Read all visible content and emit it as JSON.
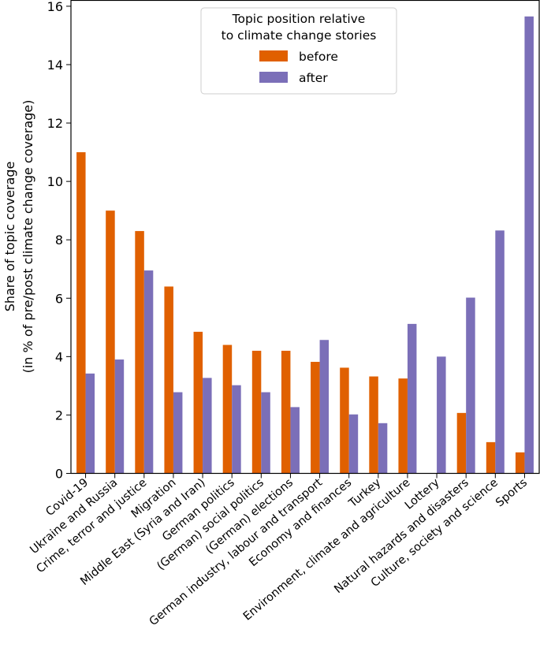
{
  "chart_data": {
    "type": "bar",
    "title": "",
    "xlabel": "",
    "ylabel_line1": "Share of topic coverage",
    "ylabel_line2": "(in % of pre/post climate change coverage)",
    "ylim": [
      0,
      16.2
    ],
    "yticks": [
      0,
      2,
      4,
      6,
      8,
      10,
      12,
      14,
      16
    ],
    "legend_title_line1": "Topic position relative",
    "legend_title_line2": "to climate change stories",
    "legend_position": "top-center",
    "categories": [
      "Covid-19",
      "Ukraine and Russia",
      "Crime, terror and justice",
      "Migration",
      "Middle East (Syria and Iran)",
      "German politics",
      "(German) social politics",
      "(German) elections",
      "German industry, labour and transport",
      "Economy and finances",
      "Turkey",
      "Environment, climate and agriculture",
      "Lottery",
      "Natural hazards and disasters",
      "Culture, society and science",
      "Sports"
    ],
    "series": [
      {
        "name": "before",
        "color": "#e06000",
        "values": [
          11.0,
          9.0,
          8.3,
          6.4,
          4.85,
          4.4,
          4.2,
          4.2,
          3.82,
          3.62,
          3.32,
          3.25,
          0.0,
          2.07,
          1.07,
          0.72
        ]
      },
      {
        "name": "after",
        "color": "#7b6fb8",
        "values": [
          3.42,
          3.9,
          6.95,
          2.78,
          3.27,
          3.02,
          2.78,
          2.27,
          4.57,
          2.02,
          1.72,
          5.12,
          4.0,
          6.02,
          8.32,
          15.65
        ]
      }
    ]
  }
}
